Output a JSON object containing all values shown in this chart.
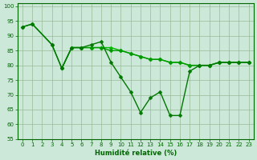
{
  "line1": {
    "x": [
      0,
      1,
      3,
      4,
      5,
      6,
      7,
      8,
      9,
      10,
      11,
      12,
      13,
      14,
      15,
      16,
      17,
      18,
      19,
      20,
      21,
      22,
      23
    ],
    "y": [
      93,
      94,
      87,
      79,
      86,
      86,
      87,
      88,
      81,
      76,
      71,
      64,
      69,
      71,
      63,
      63,
      78,
      80,
      80,
      81,
      81,
      81,
      81
    ],
    "color": "#007700"
  },
  "line2": {
    "x": [
      0,
      1,
      3,
      4,
      5,
      6,
      7,
      8,
      9,
      10,
      11,
      12,
      13,
      14,
      15,
      16,
      17,
      18,
      19,
      20,
      21,
      22,
      23
    ],
    "y": [
      93,
      94,
      87,
      79,
      86,
      86,
      86,
      86,
      85,
      85,
      84,
      83,
      82,
      82,
      81,
      81,
      80,
      80,
      80,
      81,
      81,
      81,
      81
    ],
    "color": "#009900"
  },
  "line3": {
    "x": [
      4,
      5,
      6,
      7,
      8,
      9,
      10,
      11,
      12,
      13,
      14,
      15,
      16,
      17,
      18,
      19,
      20,
      21,
      22,
      23
    ],
    "y": [
      79,
      86,
      86,
      86,
      86,
      86,
      85,
      84,
      83,
      82,
      82,
      81,
      81,
      80,
      80,
      80,
      81,
      81,
      81,
      81
    ],
    "color": "#00bb00"
  },
  "bg_color": "#cce8d8",
  "grid_color": "#99bb99",
  "axis_color": "#006600",
  "xlabel": "Humidité relative (%)",
  "xlim": [
    -0.5,
    23.5
  ],
  "ylim": [
    55,
    101
  ],
  "yticks": [
    55,
    60,
    65,
    70,
    75,
    80,
    85,
    90,
    95,
    100
  ],
  "xticks": [
    0,
    1,
    2,
    3,
    4,
    5,
    6,
    7,
    8,
    9,
    10,
    11,
    12,
    13,
    14,
    15,
    16,
    17,
    18,
    19,
    20,
    21,
    22,
    23
  ],
  "markersize": 2.5,
  "linewidth": 1.0
}
